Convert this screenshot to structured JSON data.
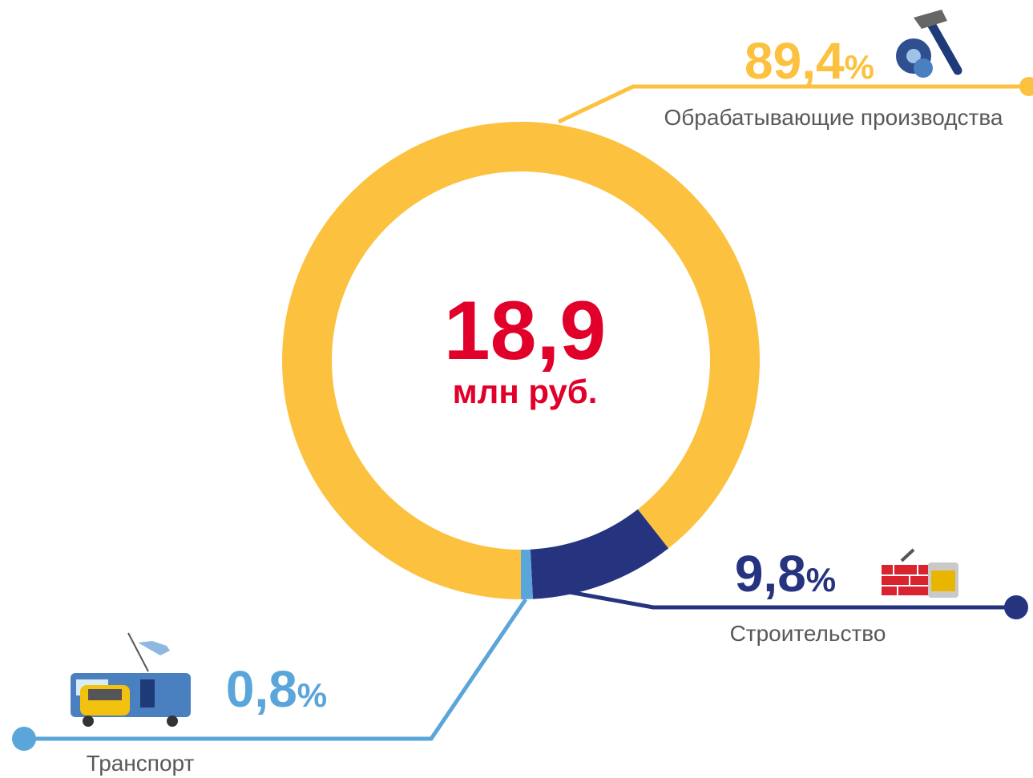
{
  "chart_data": {
    "type": "donut",
    "center_value": "18,9",
    "center_unit": "млн руб.",
    "categories": [
      "Обрабатывающие производства",
      "Строительство",
      "Транспорт"
    ],
    "values": [
      89.4,
      9.8,
      0.8
    ],
    "value_labels": [
      "89,4%",
      "9,8%",
      "0,8%"
    ],
    "colors": [
      "#fcc13e",
      "#263480",
      "#5aa5da"
    ]
  }
}
